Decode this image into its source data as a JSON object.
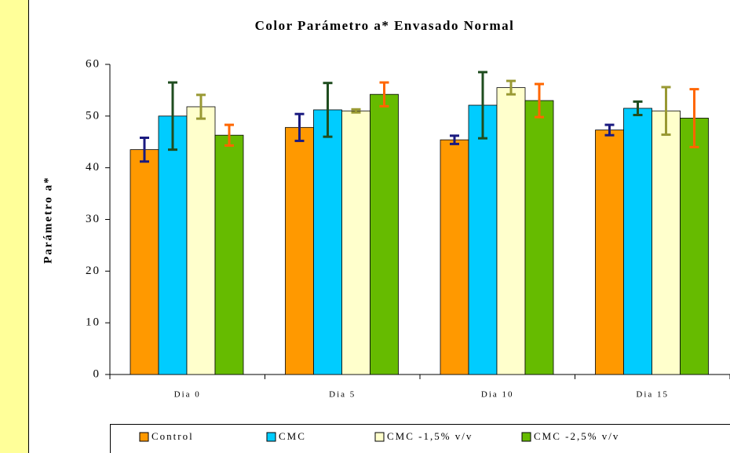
{
  "chart_data": {
    "type": "bar",
    "title": "Color Parámetro a* Envasado Normal",
    "y_label": "Parámetro a*",
    "categories": [
      "Dia 0",
      "Dia 5",
      "Dia 10",
      "Dia 15"
    ],
    "series": [
      {
        "name": "Control",
        "color": "#ff9900",
        "error_color": "#1a1a80",
        "values": [
          43.5,
          47.8,
          45.4,
          47.3
        ],
        "errors": [
          2.3,
          2.6,
          0.8,
          1.0
        ]
      },
      {
        "name": "CMC",
        "color": "#00ccff",
        "error_color": "#1f4d1f",
        "values": [
          50.0,
          51.2,
          52.1,
          51.5
        ],
        "errors": [
          6.5,
          5.2,
          6.4,
          1.3
        ]
      },
      {
        "name": "CMC -1,5% v/v",
        "color": "#ffffcc",
        "error_color": "#999933",
        "values": [
          51.8,
          51.0,
          55.5,
          51.0
        ],
        "errors": [
          2.3,
          0.3,
          1.3,
          4.6
        ]
      },
      {
        "name": "CMC -2,5% v/v",
        "color": "#66bb00",
        "error_color": "#ff6600",
        "values": [
          46.3,
          54.2,
          53.0,
          49.6
        ],
        "errors": [
          2.0,
          2.3,
          3.2,
          5.6
        ]
      }
    ],
    "ylim": [
      0,
      60
    ],
    "yticks": [
      0,
      10,
      20,
      30,
      40,
      50,
      60
    ],
    "grid": false,
    "legend": "bottom"
  }
}
